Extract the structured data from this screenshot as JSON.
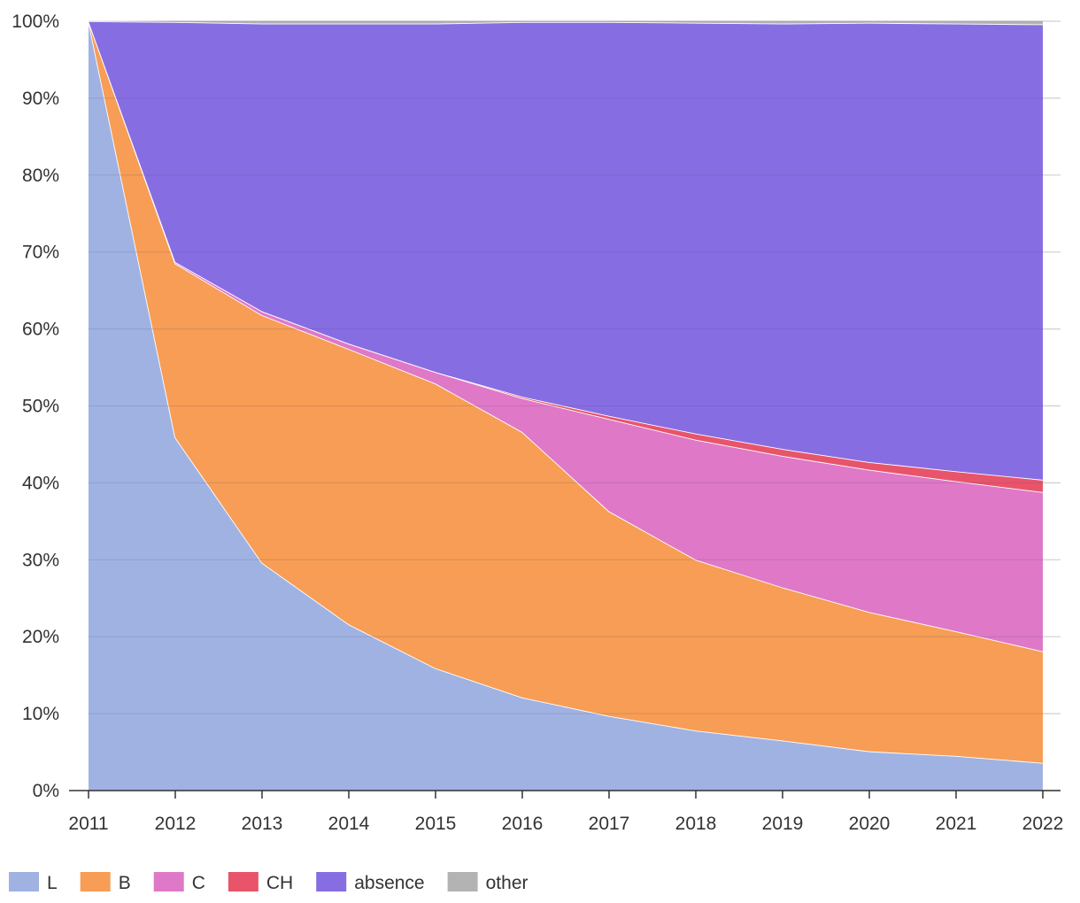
{
  "chart_data": {
    "type": "area",
    "stacked": true,
    "normalized": true,
    "title": "",
    "xlabel": "",
    "ylabel": "",
    "x": [
      "2011",
      "2012",
      "2013",
      "2014",
      "2015",
      "2016",
      "2017",
      "2018",
      "2019",
      "2020",
      "2021",
      "2022"
    ],
    "ylim": [
      0,
      100
    ],
    "yticks": [
      0,
      10,
      20,
      30,
      40,
      50,
      60,
      70,
      80,
      90,
      100
    ],
    "ytick_labels": [
      "0%",
      "10%",
      "20%",
      "30%",
      "40%",
      "50%",
      "60%",
      "70%",
      "80%",
      "90%",
      "100%"
    ],
    "grid": true,
    "legend_position": "bottom-left",
    "series": [
      {
        "name": "L",
        "color": "#a0b2e2",
        "values": [
          100.0,
          45.9,
          29.6,
          21.6,
          15.9,
          12.1,
          9.7,
          7.8,
          6.5,
          5.1,
          4.5,
          3.6
        ]
      },
      {
        "name": "B",
        "color": "#f79d55",
        "values": [
          0.0,
          22.6,
          32.2,
          35.8,
          37.0,
          34.5,
          26.6,
          22.2,
          19.9,
          18.1,
          16.2,
          14.5
        ]
      },
      {
        "name": "C",
        "color": "#df78c7",
        "values": [
          0.0,
          0.2,
          0.5,
          0.7,
          1.5,
          4.4,
          12.0,
          15.6,
          17.1,
          18.5,
          19.5,
          20.7
        ]
      },
      {
        "name": "CH",
        "color": "#e8546a",
        "values": [
          0.0,
          0.0,
          0.0,
          0.0,
          0.0,
          0.2,
          0.4,
          0.8,
          0.9,
          1.0,
          1.3,
          1.6
        ]
      },
      {
        "name": "absence",
        "color": "#876de2",
        "values": [
          0.0,
          31.2,
          37.4,
          41.6,
          45.3,
          48.7,
          51.2,
          53.4,
          55.3,
          57.1,
          58.2,
          59.2
        ]
      },
      {
        "name": "other",
        "color": "#b3b3b3",
        "values": [
          0.0,
          0.1,
          0.3,
          0.3,
          0.3,
          0.1,
          0.1,
          0.2,
          0.3,
          0.2,
          0.3,
          0.4
        ]
      }
    ]
  }
}
